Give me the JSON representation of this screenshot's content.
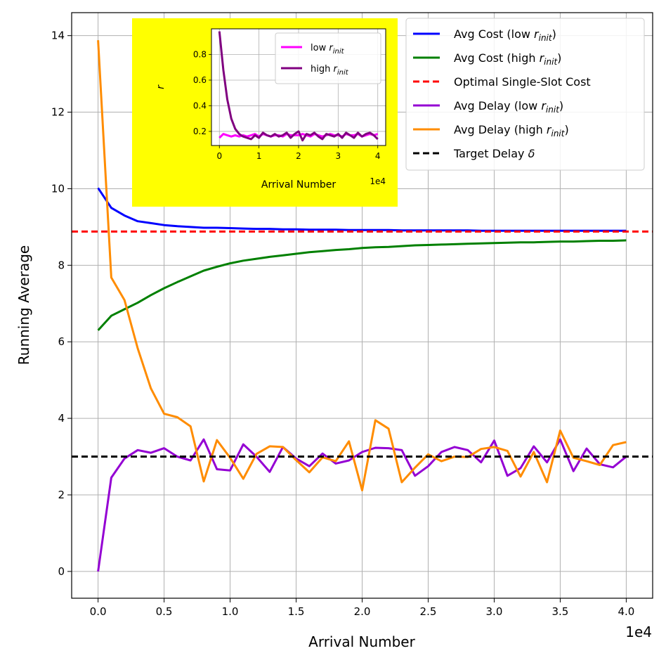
{
  "chart_data": {
    "type": "line",
    "xlabel": "Arrival Number",
    "ylabel": "Running Average",
    "x_offset_label": "1e4",
    "xlim": [
      -0.2,
      4.2
    ],
    "ylim": [
      -0.7,
      14.6
    ],
    "xticks": [
      0.0,
      0.5,
      1.0,
      1.5,
      2.0,
      2.5,
      3.0,
      3.5,
      4.0
    ],
    "xtick_labels": [
      "0.0",
      "0.5",
      "1.0",
      "1.5",
      "2.0",
      "2.5",
      "3.0",
      "3.5",
      "4.0"
    ],
    "yticks": [
      0,
      2,
      4,
      6,
      8,
      10,
      12,
      14
    ],
    "ytick_labels": [
      "0",
      "2",
      "4",
      "6",
      "8",
      "10",
      "12",
      "14"
    ],
    "grid": true,
    "legend_location": "top-right",
    "x": [
      0.0,
      0.1,
      0.2,
      0.3,
      0.4,
      0.5,
      0.6,
      0.7,
      0.8,
      0.9,
      1.0,
      1.1,
      1.2,
      1.3,
      1.4,
      1.5,
      1.6,
      1.7,
      1.8,
      1.9,
      2.0,
      2.1,
      2.2,
      2.3,
      2.4,
      2.5,
      2.6,
      2.7,
      2.8,
      2.9,
      3.0,
      3.1,
      3.2,
      3.3,
      3.4,
      3.5,
      3.6,
      3.7,
      3.8,
      3.9,
      4.0
    ],
    "series": [
      {
        "name": "Avg Cost (low r_init)",
        "legend_base": "Avg Cost (low ",
        "legend_var": "r",
        "legend_sub": "init",
        "legend_tail": ")",
        "color": "#0000ff",
        "dash": "solid",
        "values": [
          10.02,
          9.5,
          9.3,
          9.15,
          9.1,
          9.05,
          9.02,
          9.0,
          8.98,
          8.98,
          8.97,
          8.96,
          8.95,
          8.95,
          8.94,
          8.94,
          8.93,
          8.93,
          8.93,
          8.92,
          8.92,
          8.92,
          8.92,
          8.91,
          8.91,
          8.91,
          8.91,
          8.91,
          8.91,
          8.9,
          8.9,
          8.9,
          8.9,
          8.9,
          8.9,
          8.9,
          8.9,
          8.9,
          8.9,
          8.9,
          8.9
        ]
      },
      {
        "name": "Avg Cost (high r_init)",
        "legend_base": "Avg Cost (high ",
        "legend_var": "r",
        "legend_sub": "init",
        "legend_tail": ")",
        "color": "#008000",
        "dash": "solid",
        "values": [
          6.3,
          6.68,
          6.85,
          7.02,
          7.22,
          7.4,
          7.56,
          7.71,
          7.86,
          7.96,
          8.05,
          8.12,
          8.17,
          8.22,
          8.26,
          8.3,
          8.34,
          8.37,
          8.4,
          8.42,
          8.45,
          8.47,
          8.48,
          8.5,
          8.52,
          8.53,
          8.54,
          8.55,
          8.56,
          8.57,
          8.58,
          8.59,
          8.6,
          8.6,
          8.61,
          8.62,
          8.62,
          8.63,
          8.64,
          8.64,
          8.65
        ]
      },
      {
        "name": "Optimal Single-Slot Cost",
        "legend_base": "Optimal Single-Slot Cost",
        "color": "#ff0000",
        "dash": "dashed",
        "hline": 8.88
      },
      {
        "name": "Avg Delay (low r_init)",
        "legend_base": "Avg Delay (low ",
        "legend_var": "r",
        "legend_sub": "init",
        "legend_tail": ")",
        "color": "#9400d3",
        "dash": "solid",
        "values": [
          0.0,
          2.45,
          2.95,
          3.17,
          3.1,
          3.22,
          3.0,
          2.9,
          3.45,
          2.67,
          2.64,
          3.32,
          3.0,
          2.6,
          3.25,
          2.95,
          2.75,
          3.08,
          2.82,
          2.9,
          3.12,
          3.23,
          3.22,
          3.17,
          2.5,
          2.75,
          3.12,
          3.25,
          3.17,
          2.85,
          3.42,
          2.5,
          2.7,
          3.27,
          2.85,
          3.45,
          2.62,
          3.21,
          2.8,
          2.72,
          3.0
        ]
      },
      {
        "name": "Avg Delay (high r_init)",
        "legend_base": "Avg Delay (high ",
        "legend_var": "r",
        "legend_sub": "init",
        "legend_tail": ")",
        "color": "#ff8c00",
        "dash": "solid",
        "values": [
          13.88,
          7.68,
          7.09,
          5.83,
          4.78,
          4.12,
          4.03,
          3.79,
          2.35,
          3.43,
          2.97,
          2.42,
          3.07,
          3.27,
          3.25,
          2.91,
          2.59,
          2.98,
          2.88,
          3.4,
          2.12,
          3.95,
          3.73,
          2.33,
          2.71,
          3.06,
          2.88,
          3.0,
          2.99,
          3.2,
          3.25,
          3.15,
          2.48,
          3.12,
          2.33,
          3.68,
          2.97,
          2.88,
          2.78,
          3.3,
          3.38
        ]
      },
      {
        "name": "Target Delay δ",
        "legend_base": "Target Delay ",
        "legend_var": "δ",
        "color": "#000000",
        "dash": "dashed",
        "hline": 3.0
      }
    ],
    "inset": {
      "type": "line",
      "background": "#ffff00",
      "xlabel": "Arrival Number",
      "ylabel": "r",
      "x_offset_label": "1e4",
      "xlim": [
        -0.2,
        4.2
      ],
      "ylim": [
        0.09,
        1.0
      ],
      "xticks": [
        0,
        1,
        2,
        3,
        4
      ],
      "xtick_labels": [
        "0",
        "1",
        "2",
        "3",
        "4"
      ],
      "yticks": [
        0.2,
        0.4,
        0.6,
        0.8
      ],
      "ytick_labels": [
        "0.2",
        "0.4",
        "0.6",
        "0.8"
      ],
      "grid": true,
      "legend_location": "top-right",
      "x": [
        0.0,
        0.1,
        0.2,
        0.3,
        0.4,
        0.5,
        0.6,
        0.7,
        0.8,
        0.9,
        1.0,
        1.1,
        1.2,
        1.3,
        1.4,
        1.5,
        1.6,
        1.7,
        1.8,
        1.9,
        2.0,
        2.1,
        2.2,
        2.3,
        2.4,
        2.5,
        2.6,
        2.7,
        2.8,
        2.9,
        3.0,
        3.1,
        3.2,
        3.3,
        3.4,
        3.5,
        3.6,
        3.7,
        3.8,
        3.9,
        4.0
      ],
      "series": [
        {
          "name": "low r_init",
          "legend_base": "low ",
          "legend_var": "r",
          "legend_sub": "init",
          "color": "#ff00ff",
          "values": [
            0.15,
            0.18,
            0.17,
            0.16,
            0.17,
            0.16,
            0.17,
            0.16,
            0.17,
            0.18,
            0.16,
            0.18,
            0.17,
            0.16,
            0.17,
            0.17,
            0.16,
            0.18,
            0.17,
            0.17,
            0.17,
            0.18,
            0.17,
            0.16,
            0.18,
            0.17,
            0.16,
            0.17,
            0.18,
            0.17,
            0.17,
            0.16,
            0.18,
            0.17,
            0.17,
            0.18,
            0.16,
            0.17,
            0.18,
            0.17,
            0.18
          ]
        },
        {
          "name": "high r_init",
          "legend_base": "high ",
          "legend_var": "r",
          "legend_sub": "init",
          "color": "#800080",
          "values": [
            0.98,
            0.68,
            0.45,
            0.3,
            0.22,
            0.18,
            0.16,
            0.15,
            0.14,
            0.17,
            0.15,
            0.19,
            0.17,
            0.16,
            0.18,
            0.16,
            0.17,
            0.19,
            0.15,
            0.18,
            0.2,
            0.13,
            0.18,
            0.17,
            0.19,
            0.16,
            0.14,
            0.18,
            0.17,
            0.16,
            0.18,
            0.15,
            0.19,
            0.17,
            0.15,
            0.19,
            0.16,
            0.18,
            0.19,
            0.17,
            0.14
          ]
        }
      ]
    }
  }
}
